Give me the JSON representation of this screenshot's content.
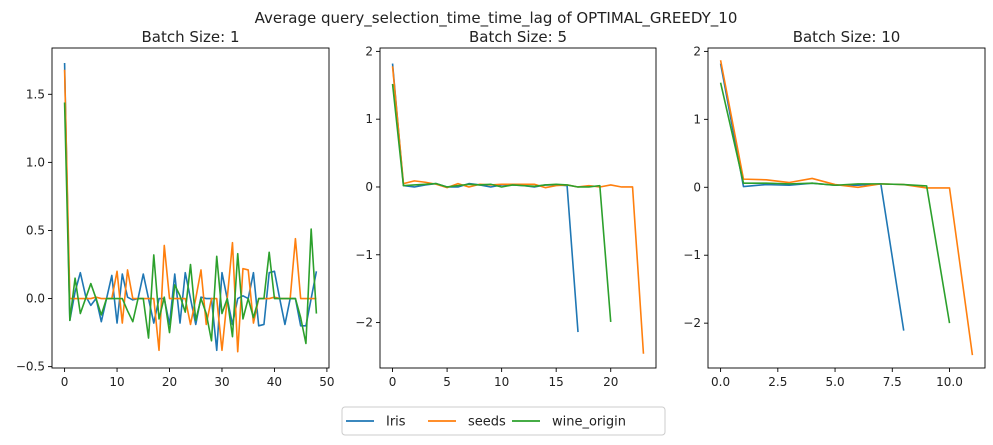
{
  "figure": {
    "title": "Average query_selection_time_time_lag of OPTIMAL_GREEDY_10",
    "colors": {
      "Iris": "#1f77b4",
      "seeds": "#ff7f0e",
      "wine_origin": "#2ca02c"
    }
  },
  "legend": {
    "placement": "bottom-center",
    "entries": [
      "Iris",
      "seeds",
      "wine_origin"
    ]
  },
  "chart_data": [
    {
      "type": "line",
      "title": "Batch Size: 1",
      "xlim": [
        -2.4,
        50.4
      ],
      "ylim": [
        -0.51,
        1.84
      ],
      "xticks": [
        0,
        10,
        20,
        30,
        40,
        50
      ],
      "xtick_labels": [
        "0",
        "10",
        "20",
        "30",
        "40",
        "50"
      ],
      "yticks": [
        -0.5,
        0.0,
        0.5,
        1.0,
        1.5
      ],
      "ytick_labels": [
        "−0.5",
        "0.0",
        "0.5",
        "1.0",
        "1.5"
      ],
      "grid": false,
      "series": [
        {
          "name": "Iris",
          "x": [
            0,
            1,
            2,
            3,
            4,
            5,
            6,
            7,
            8,
            9,
            10,
            11,
            12,
            13,
            14,
            15,
            16,
            17,
            18,
            19,
            20,
            21,
            22,
            23,
            24,
            25,
            26,
            27,
            28,
            29,
            30,
            31,
            32,
            33,
            34,
            35,
            36,
            37,
            38,
            39,
            40,
            41,
            42,
            43,
            44,
            45,
            46,
            47,
            48
          ],
          "y": [
            1.73,
            -0.16,
            0.05,
            0.19,
            0.02,
            -0.05,
            0.0,
            -0.17,
            0.0,
            0.17,
            -0.18,
            0.18,
            0.01,
            -0.01,
            0.0,
            0.18,
            0.0,
            -0.18,
            0.0,
            0.0,
            -0.19,
            0.18,
            -0.18,
            0.19,
            0.0,
            -0.19,
            0.01,
            0.0,
            0.0,
            -0.38,
            0.19,
            0.0,
            -0.19,
            0.0,
            0.02,
            0.0,
            0.19,
            -0.2,
            -0.19,
            0.19,
            0.2,
            0.0,
            -0.19,
            0.0,
            0.0,
            -0.2,
            -0.2,
            0.0,
            0.2
          ]
        },
        {
          "name": "seeds",
          "x": [
            0,
            1,
            2,
            3,
            4,
            5,
            6,
            7,
            8,
            9,
            10,
            11,
            12,
            13,
            14,
            15,
            16,
            17,
            18,
            19,
            20,
            21,
            22,
            23,
            24,
            25,
            26,
            27,
            28,
            29,
            30,
            31,
            32,
            33,
            34,
            35,
            36,
            37,
            38,
            39,
            40,
            41,
            42,
            43,
            44,
            45,
            46,
            47,
            48
          ],
          "y": [
            1.68,
            0.0,
            0.0,
            0.0,
            0.0,
            0.0,
            0.01,
            0.0,
            0.0,
            0.0,
            0.2,
            -0.18,
            0.21,
            0.0,
            0.0,
            0.0,
            0.0,
            0.0,
            -0.38,
            0.39,
            0.0,
            0.0,
            0.0,
            0.0,
            -0.19,
            0.0,
            0.21,
            -0.19,
            0.0,
            0.0,
            -0.38,
            0.0,
            0.41,
            -0.39,
            0.22,
            0.21,
            -0.18,
            0.0,
            0.0,
            0.0,
            0.01,
            0.0,
            0.0,
            0.0,
            0.44,
            0.0,
            0.0,
            0.0,
            0.0
          ]
        },
        {
          "name": "wine_origin",
          "x": [
            0,
            1,
            2,
            3,
            4,
            5,
            6,
            7,
            8,
            9,
            10,
            11,
            12,
            13,
            14,
            15,
            16,
            17,
            18,
            19,
            20,
            21,
            22,
            23,
            24,
            25,
            26,
            27,
            28,
            29,
            30,
            31,
            32,
            33,
            34,
            35,
            36,
            37,
            38,
            39,
            40,
            41,
            42,
            43,
            44,
            45,
            46,
            47,
            48
          ],
          "y": [
            1.44,
            -0.16,
            0.15,
            -0.11,
            0.0,
            0.11,
            0.0,
            -0.12,
            0.0,
            0.0,
            0.0,
            0.0,
            -0.09,
            -0.17,
            0.0,
            0.0,
            -0.29,
            0.32,
            -0.15,
            0.01,
            -0.25,
            0.1,
            0.02,
            -0.1,
            0.25,
            -0.16,
            0.0,
            -0.11,
            -0.31,
            0.31,
            -0.11,
            0.0,
            -0.28,
            0.33,
            -0.15,
            0.0,
            -0.14,
            0.0,
            0.0,
            0.34,
            0.0,
            0.0,
            0.0,
            0.0,
            0.0,
            -0.14,
            -0.33,
            0.51,
            -0.11
          ]
        }
      ]
    },
    {
      "type": "line",
      "title": "Batch Size: 5",
      "xlim": [
        -1.15,
        24.15
      ],
      "ylim": [
        -2.67,
        2.05
      ],
      "xticks": [
        0,
        5,
        10,
        15,
        20
      ],
      "xtick_labels": [
        "0",
        "5",
        "10",
        "15",
        "20"
      ],
      "yticks": [
        -2,
        -1,
        0,
        1,
        2
      ],
      "ytick_labels": [
        "−2",
        "−1",
        "0",
        "1",
        "2"
      ],
      "grid": false,
      "series": [
        {
          "name": "Iris",
          "x": [
            0,
            1,
            2,
            3,
            4,
            5,
            6,
            7,
            8,
            9,
            10,
            11,
            12,
            13,
            14,
            15,
            16,
            17
          ],
          "y": [
            1.82,
            0.02,
            0.0,
            0.03,
            0.05,
            0.0,
            0.0,
            0.05,
            0.03,
            0.0,
            0.03,
            0.03,
            0.02,
            0.0,
            0.03,
            0.03,
            0.02,
            -2.14
          ]
        },
        {
          "name": "seeds",
          "x": [
            0,
            1,
            2,
            3,
            4,
            5,
            6,
            7,
            8,
            9,
            10,
            11,
            12,
            13,
            14,
            15,
            16,
            17,
            18,
            19,
            20,
            21,
            22,
            23
          ],
          "y": [
            1.78,
            0.05,
            0.09,
            0.07,
            0.04,
            -0.01,
            0.05,
            0.0,
            0.04,
            0.03,
            0.04,
            0.04,
            0.04,
            0.04,
            -0.01,
            0.02,
            0.03,
            0.0,
            0.02,
            0.0,
            0.03,
            0.0,
            0.0,
            -2.46
          ]
        },
        {
          "name": "wine_origin",
          "x": [
            0,
            1,
            2,
            3,
            4,
            5,
            6,
            7,
            8,
            9,
            10,
            11,
            12,
            13,
            14,
            15,
            16,
            17,
            18,
            19,
            20
          ],
          "y": [
            1.52,
            0.02,
            0.03,
            0.04,
            0.05,
            0.0,
            0.02,
            0.04,
            0.03,
            0.04,
            0.0,
            0.03,
            0.02,
            0.01,
            0.03,
            0.04,
            0.03,
            0.0,
            0.0,
            0.02,
            -1.99
          ]
        }
      ]
    },
    {
      "type": "line",
      "title": "Batch Size: 10",
      "xlim": [
        -0.55,
        11.55
      ],
      "ylim": [
        -2.66,
        2.05
      ],
      "xticks": [
        0,
        2.5,
        5,
        7.5,
        10
      ],
      "xtick_labels": [
        "0.0",
        "2.5",
        "5.0",
        "7.5",
        "10.0"
      ],
      "yticks": [
        -2,
        -1,
        0,
        1,
        2
      ],
      "ytick_labels": [
        "−2",
        "−1",
        "0",
        "1",
        "2"
      ],
      "grid": false,
      "series": [
        {
          "name": "Iris",
          "x": [
            0,
            1,
            2,
            3,
            4,
            5,
            6,
            7,
            8
          ],
          "y": [
            1.82,
            0.01,
            0.04,
            0.03,
            0.06,
            0.03,
            0.03,
            0.05,
            -2.11
          ]
        },
        {
          "name": "seeds",
          "x": [
            0,
            1,
            2,
            3,
            4,
            5,
            6,
            7,
            8,
            9,
            10,
            11
          ],
          "y": [
            1.87,
            0.12,
            0.11,
            0.07,
            0.13,
            0.04,
            0.0,
            0.05,
            0.04,
            -0.01,
            -0.01,
            -2.47
          ]
        },
        {
          "name": "wine_origin",
          "x": [
            0,
            1,
            2,
            3,
            4,
            5,
            6,
            7,
            8,
            9,
            10
          ],
          "y": [
            1.54,
            0.06,
            0.06,
            0.05,
            0.06,
            0.03,
            0.05,
            0.05,
            0.04,
            0.02,
            -2.0
          ]
        }
      ]
    }
  ]
}
